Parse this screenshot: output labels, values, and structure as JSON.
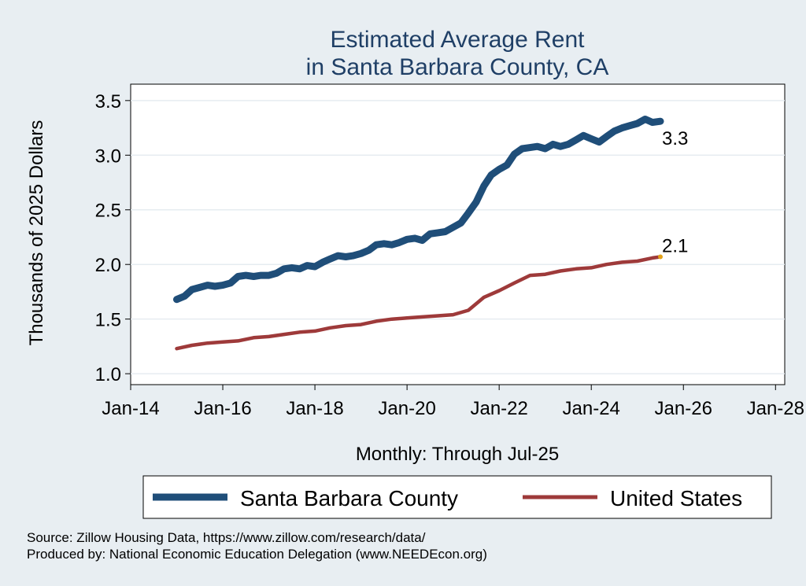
{
  "chart_data": {
    "type": "line",
    "title": [
      "Estimated Average Rent",
      "in Santa Barbara County, CA"
    ],
    "xlabel": "Monthly: Through Jul-25",
    "ylabel": "Thousands of 2025 Dollars",
    "ylim": [
      0.9,
      3.65
    ],
    "xlim": [
      2014.0,
      2028.2
    ],
    "yticks": [
      1.0,
      1.5,
      2.0,
      2.5,
      3.0,
      3.5
    ],
    "ytick_labels": [
      "1.0",
      "1.5",
      "2.0",
      "2.5",
      "3.0",
      "3.5"
    ],
    "xticks": [
      2014,
      2016,
      2018,
      2020,
      2022,
      2024,
      2026,
      2028
    ],
    "xtick_labels": [
      "Jan-14",
      "Jan-16",
      "Jan-18",
      "Jan-20",
      "Jan-22",
      "Jan-24",
      "Jan-26",
      "Jan-28"
    ],
    "grid": true,
    "legend_position": "bottom",
    "series": [
      {
        "name": "Santa Barbara County",
        "color": "#1f4e79",
        "end_label": "3.3",
        "points": [
          [
            2015.0,
            1.68
          ],
          [
            2015.17,
            1.71
          ],
          [
            2015.33,
            1.77
          ],
          [
            2015.5,
            1.79
          ],
          [
            2015.67,
            1.81
          ],
          [
            2015.83,
            1.8
          ],
          [
            2016.0,
            1.81
          ],
          [
            2016.17,
            1.83
          ],
          [
            2016.33,
            1.89
          ],
          [
            2016.5,
            1.9
          ],
          [
            2016.67,
            1.89
          ],
          [
            2016.83,
            1.9
          ],
          [
            2017.0,
            1.9
          ],
          [
            2017.17,
            1.92
          ],
          [
            2017.33,
            1.96
          ],
          [
            2017.5,
            1.97
          ],
          [
            2017.67,
            1.96
          ],
          [
            2017.83,
            1.99
          ],
          [
            2018.0,
            1.98
          ],
          [
            2018.17,
            2.02
          ],
          [
            2018.33,
            2.05
          ],
          [
            2018.5,
            2.08
          ],
          [
            2018.67,
            2.07
          ],
          [
            2018.83,
            2.08
          ],
          [
            2019.0,
            2.1
          ],
          [
            2019.17,
            2.13
          ],
          [
            2019.33,
            2.18
          ],
          [
            2019.5,
            2.19
          ],
          [
            2019.67,
            2.18
          ],
          [
            2019.83,
            2.2
          ],
          [
            2020.0,
            2.23
          ],
          [
            2020.17,
            2.24
          ],
          [
            2020.33,
            2.22
          ],
          [
            2020.5,
            2.28
          ],
          [
            2020.67,
            2.29
          ],
          [
            2020.83,
            2.3
          ],
          [
            2021.0,
            2.34
          ],
          [
            2021.17,
            2.38
          ],
          [
            2021.33,
            2.47
          ],
          [
            2021.5,
            2.57
          ],
          [
            2021.67,
            2.72
          ],
          [
            2021.83,
            2.82
          ],
          [
            2022.0,
            2.87
          ],
          [
            2022.17,
            2.91
          ],
          [
            2022.33,
            3.01
          ],
          [
            2022.5,
            3.06
          ],
          [
            2022.67,
            3.07
          ],
          [
            2022.83,
            3.08
          ],
          [
            2023.0,
            3.06
          ],
          [
            2023.17,
            3.1
          ],
          [
            2023.33,
            3.08
          ],
          [
            2023.5,
            3.1
          ],
          [
            2023.67,
            3.14
          ],
          [
            2023.83,
            3.18
          ],
          [
            2024.0,
            3.15
          ],
          [
            2024.17,
            3.12
          ],
          [
            2024.33,
            3.17
          ],
          [
            2024.5,
            3.22
          ],
          [
            2024.67,
            3.25
          ],
          [
            2024.83,
            3.27
          ],
          [
            2025.0,
            3.29
          ],
          [
            2025.17,
            3.33
          ],
          [
            2025.33,
            3.3
          ],
          [
            2025.5,
            3.31
          ]
        ]
      },
      {
        "name": "United States",
        "color": "#9e3a3a",
        "end_label": "2.1",
        "points": [
          [
            2015.0,
            1.23
          ],
          [
            2015.33,
            1.26
          ],
          [
            2015.67,
            1.28
          ],
          [
            2016.0,
            1.29
          ],
          [
            2016.33,
            1.3
          ],
          [
            2016.67,
            1.33
          ],
          [
            2017.0,
            1.34
          ],
          [
            2017.33,
            1.36
          ],
          [
            2017.67,
            1.38
          ],
          [
            2018.0,
            1.39
          ],
          [
            2018.33,
            1.42
          ],
          [
            2018.67,
            1.44
          ],
          [
            2019.0,
            1.45
          ],
          [
            2019.33,
            1.48
          ],
          [
            2019.67,
            1.5
          ],
          [
            2020.0,
            1.51
          ],
          [
            2020.33,
            1.52
          ],
          [
            2020.67,
            1.53
          ],
          [
            2021.0,
            1.54
          ],
          [
            2021.33,
            1.58
          ],
          [
            2021.67,
            1.7
          ],
          [
            2022.0,
            1.76
          ],
          [
            2022.33,
            1.83
          ],
          [
            2022.67,
            1.9
          ],
          [
            2023.0,
            1.91
          ],
          [
            2023.33,
            1.94
          ],
          [
            2023.67,
            1.96
          ],
          [
            2024.0,
            1.97
          ],
          [
            2024.33,
            2.0
          ],
          [
            2024.67,
            2.02
          ],
          [
            2025.0,
            2.03
          ],
          [
            2025.33,
            2.06
          ],
          [
            2025.5,
            2.07
          ]
        ]
      }
    ],
    "notes": [
      "Source: Zillow Housing Data, https://www.zillow.com/research/data/",
      "Produced by: National Economic Education Delegation (www.NEEDEcon.org)"
    ]
  }
}
